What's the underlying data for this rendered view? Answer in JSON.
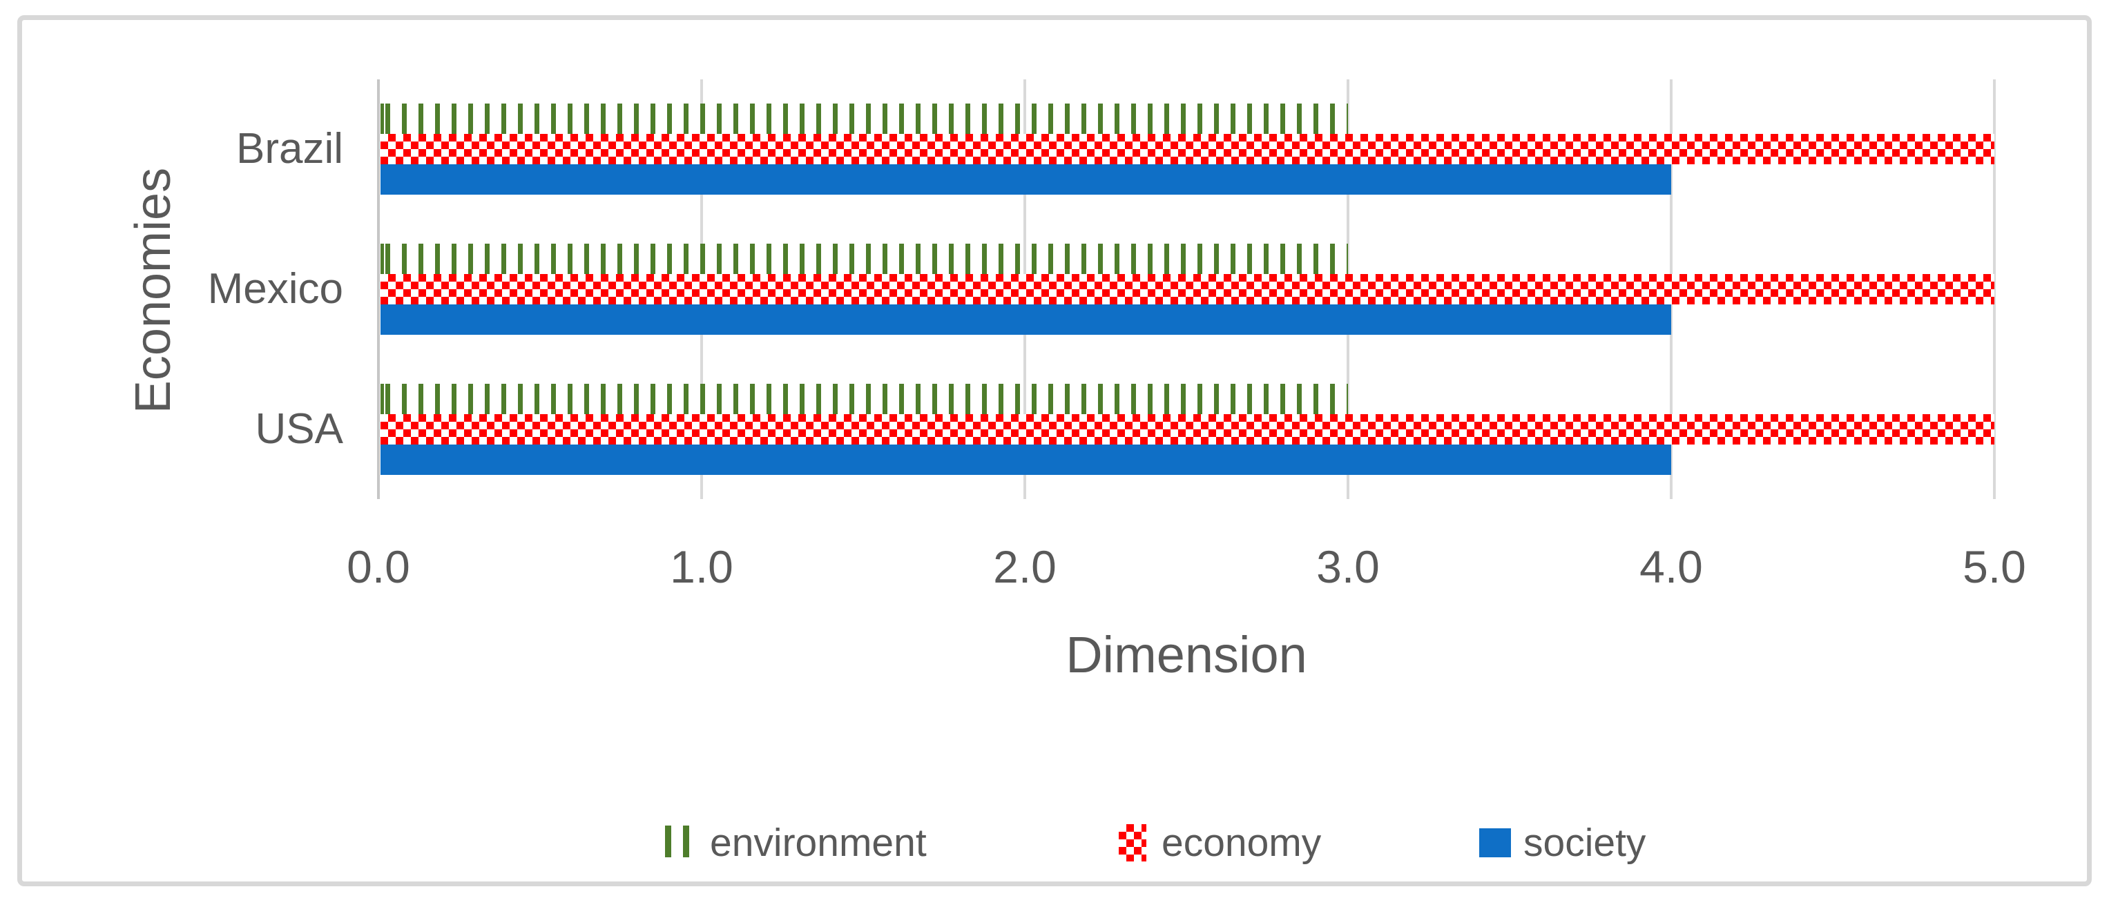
{
  "chart_data": {
    "type": "bar",
    "orientation": "horizontal",
    "xlabel": "Dimension",
    "ylabel": "Economies",
    "categories": [
      "Brazil",
      "Mexico",
      "USA"
    ],
    "series": [
      {
        "name": "environment",
        "values": [
          3.0,
          3.0,
          3.0
        ],
        "pattern": "vertical-dashes",
        "color": "#4E7D2B"
      },
      {
        "name": "economy",
        "values": [
          5.0,
          5.0,
          5.0
        ],
        "pattern": "checkerboard",
        "color": "#FF0000"
      },
      {
        "name": "society",
        "values": [
          4.0,
          4.0,
          4.0
        ],
        "pattern": "solid",
        "color": "#0F6FC6"
      }
    ],
    "xlim": [
      0,
      5
    ],
    "xticks": [
      "0.0",
      "1.0",
      "2.0",
      "3.0",
      "4.0",
      "5.0"
    ],
    "grid": true,
    "legend_position": "bottom",
    "colors": {
      "text": "#595959",
      "gridline": "#D9D9D9",
      "axis_line": "#C6C6C6",
      "frame_border": "#D8D8D8",
      "plot_background": "#FFFFFF"
    }
  }
}
